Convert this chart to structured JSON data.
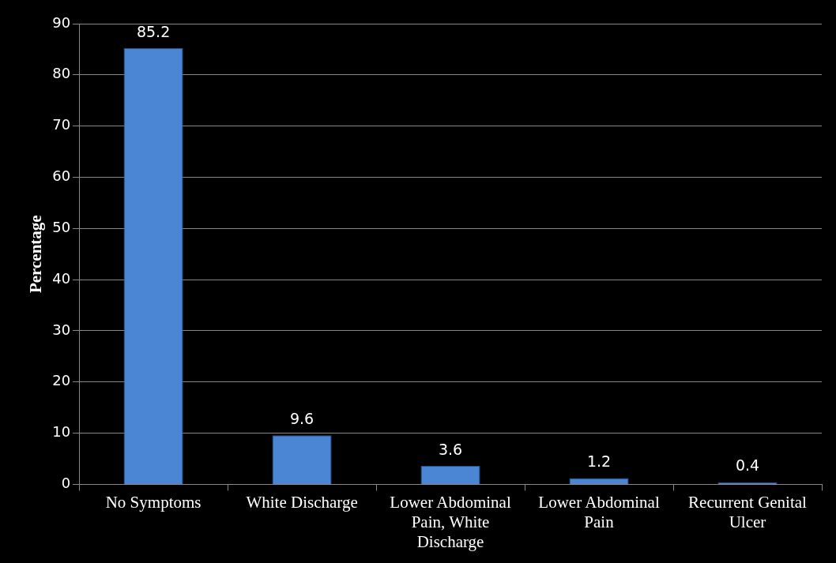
{
  "chart_data": {
    "type": "bar",
    "ylabel": "Percentage",
    "categories": [
      "No Symptoms",
      "White Discharge",
      "Lower Abdominal Pain, White Discharge",
      "Lower Abdominal Pain",
      "Recurrent Genital Ulcer"
    ],
    "values": [
      85.2,
      9.6,
      3.6,
      1.2,
      0.4
    ],
    "color": "#4a86d4",
    "ylim": [
      0,
      90
    ],
    "yticks": [
      0,
      10,
      20,
      30,
      40,
      50,
      60,
      70,
      80,
      90
    ],
    "grid": "y",
    "data_labels": true,
    "legend": false
  }
}
